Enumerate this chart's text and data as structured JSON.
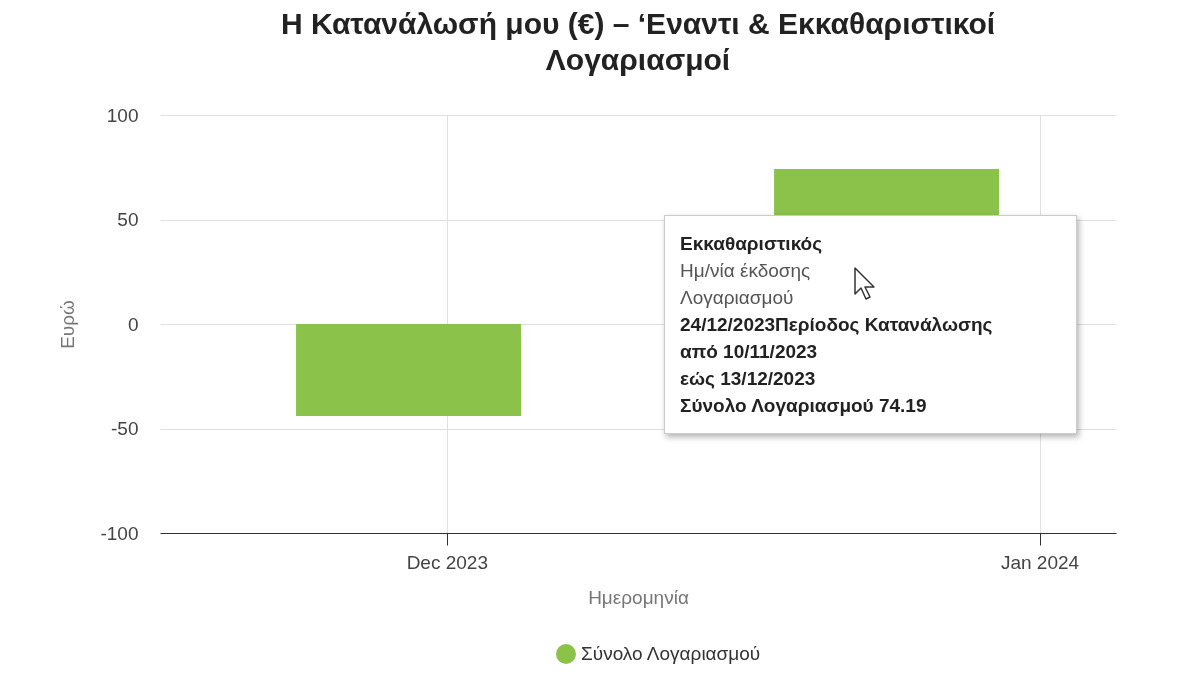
{
  "chart_data": {
    "type": "bar",
    "title": "Η Κατανάλωσή μου (€) – ‘Εναντι & Εκκαθαριστικοί Λογαριασμοί",
    "xlabel": "Ημερομηνία",
    "ylabel": "Ευρώ",
    "x": [
      "2023-11-29",
      "2023-12-24"
    ],
    "series": [
      {
        "name": "Σύνολο Λογαριασμού",
        "color": "#8bc34a",
        "values": [
          -44,
          74.19
        ]
      }
    ],
    "xlim": [
      "2023-11-16",
      "2024-01-05"
    ],
    "xticks": [
      {
        "value": "2023-12-01",
        "label": "Dec 2023"
      },
      {
        "value": "2024-01-01",
        "label": "Jan 2024"
      }
    ],
    "ylim": [
      -100,
      100
    ],
    "yticks": [
      -100,
      -50,
      0,
      50,
      100
    ],
    "grid": true,
    "legend": "bottom",
    "marker": "circle",
    "annotations": [
      "Εκκαθαριστικός",
      "Ημ/νία έκδοσης",
      "Λογαριασμού",
      "24/12/2023Περίοδος Κατανάλωσης",
      "από 10/11/2023",
      "εώς 13/12/2023",
      "Σύνολο Λογαριασμού 74.19"
    ]
  }
}
